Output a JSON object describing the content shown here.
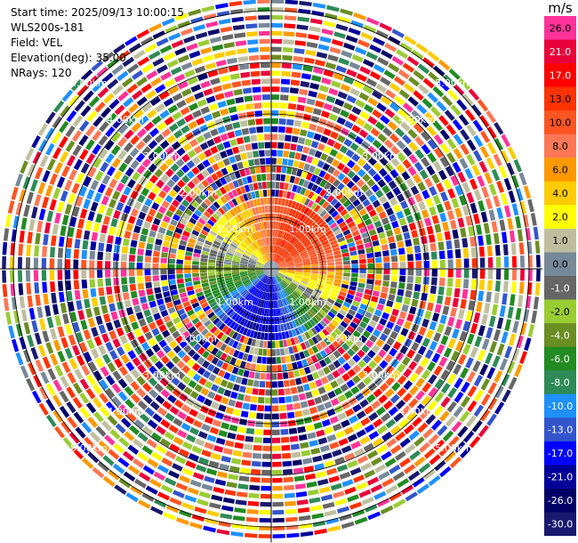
{
  "header": {
    "start_time": "Start time: 2025/09/13 10:00:15",
    "instrument": "WLS200s-181",
    "field": "Field: VEL",
    "elevation": "Elevation(deg): 35.00",
    "nrays": "NRays: 120"
  },
  "colorbar": {
    "unit": "m/s",
    "bins": [
      {
        "label": "26.0",
        "color": "#ff3399"
      },
      {
        "label": "21.0",
        "color": "#e8003a"
      },
      {
        "label": "17.0",
        "color": "#ff0000"
      },
      {
        "label": "13.0",
        "color": "#ff3300"
      },
      {
        "label": "10.0",
        "color": "#ff5522"
      },
      {
        "label": "8.0",
        "color": "#ff7755"
      },
      {
        "label": "6.0",
        "color": "#ff9900"
      },
      {
        "label": "4.0",
        "color": "#ffcc00"
      },
      {
        "label": "2.0",
        "color": "#ffff00"
      },
      {
        "label": "1.0",
        "color": "#bfbf9f"
      },
      {
        "label": "0.0",
        "color": "#778899"
      },
      {
        "label": "-1.0",
        "color": "#666666"
      },
      {
        "label": "-2.0",
        "color": "#99cc33"
      },
      {
        "label": "-4.0",
        "color": "#6b8e23"
      },
      {
        "label": "-6.0",
        "color": "#228b22"
      },
      {
        "label": "-8.0",
        "color": "#2e8b57"
      },
      {
        "label": "-10.0",
        "color": "#1e90ff"
      },
      {
        "label": "-13.0",
        "color": "#3355cc"
      },
      {
        "label": "-17.0",
        "color": "#0000ff"
      },
      {
        "label": "-21.0",
        "color": "#000099"
      },
      {
        "label": "-26.0",
        "color": "#000066"
      },
      {
        "label": "-30.0",
        "color": "#191970"
      }
    ]
  },
  "chart_data": {
    "type": "heatmap",
    "projection": "polar PPI",
    "field": "VEL",
    "unit": "m/s",
    "nrays": 120,
    "range_rings_km": [
      1.0,
      2.0,
      3.0,
      4.0,
      5.0
    ],
    "ring_labels": [
      "1.00km",
      "2.00km",
      "3.00km",
      "4.00km",
      "5.00km"
    ],
    "max_range_km": 5.3,
    "color_levels": [
      26.0,
      21.0,
      17.0,
      13.0,
      10.0,
      8.0,
      6.0,
      4.0,
      2.0,
      1.0,
      0.0,
      -1.0,
      -2.0,
      -4.0,
      -6.0,
      -8.0,
      -10.0,
      -13.0,
      -17.0,
      -21.0,
      -26.0,
      -30.0
    ],
    "clean_range_km": 1.3,
    "sector_velocity_ms": [
      {
        "azimuth_deg": 0,
        "velocity": 10.0
      },
      {
        "azimuth_deg": 30,
        "velocity": 17.0
      },
      {
        "azimuth_deg": 60,
        "velocity": 13.0
      },
      {
        "azimuth_deg": 90,
        "velocity": 8.0
      },
      {
        "azimuth_deg": 120,
        "velocity": 0.0
      },
      {
        "azimuth_deg": 150,
        "velocity": -8.0
      },
      {
        "azimuth_deg": 180,
        "velocity": -17.0
      },
      {
        "azimuth_deg": 210,
        "velocity": -17.0
      },
      {
        "azimuth_deg": 240,
        "velocity": -6.0
      },
      {
        "azimuth_deg": 270,
        "velocity": -2.0
      },
      {
        "azimuth_deg": 300,
        "velocity": 2.0
      },
      {
        "azimuth_deg": 330,
        "velocity": 6.0
      }
    ],
    "far_range": "noise"
  }
}
